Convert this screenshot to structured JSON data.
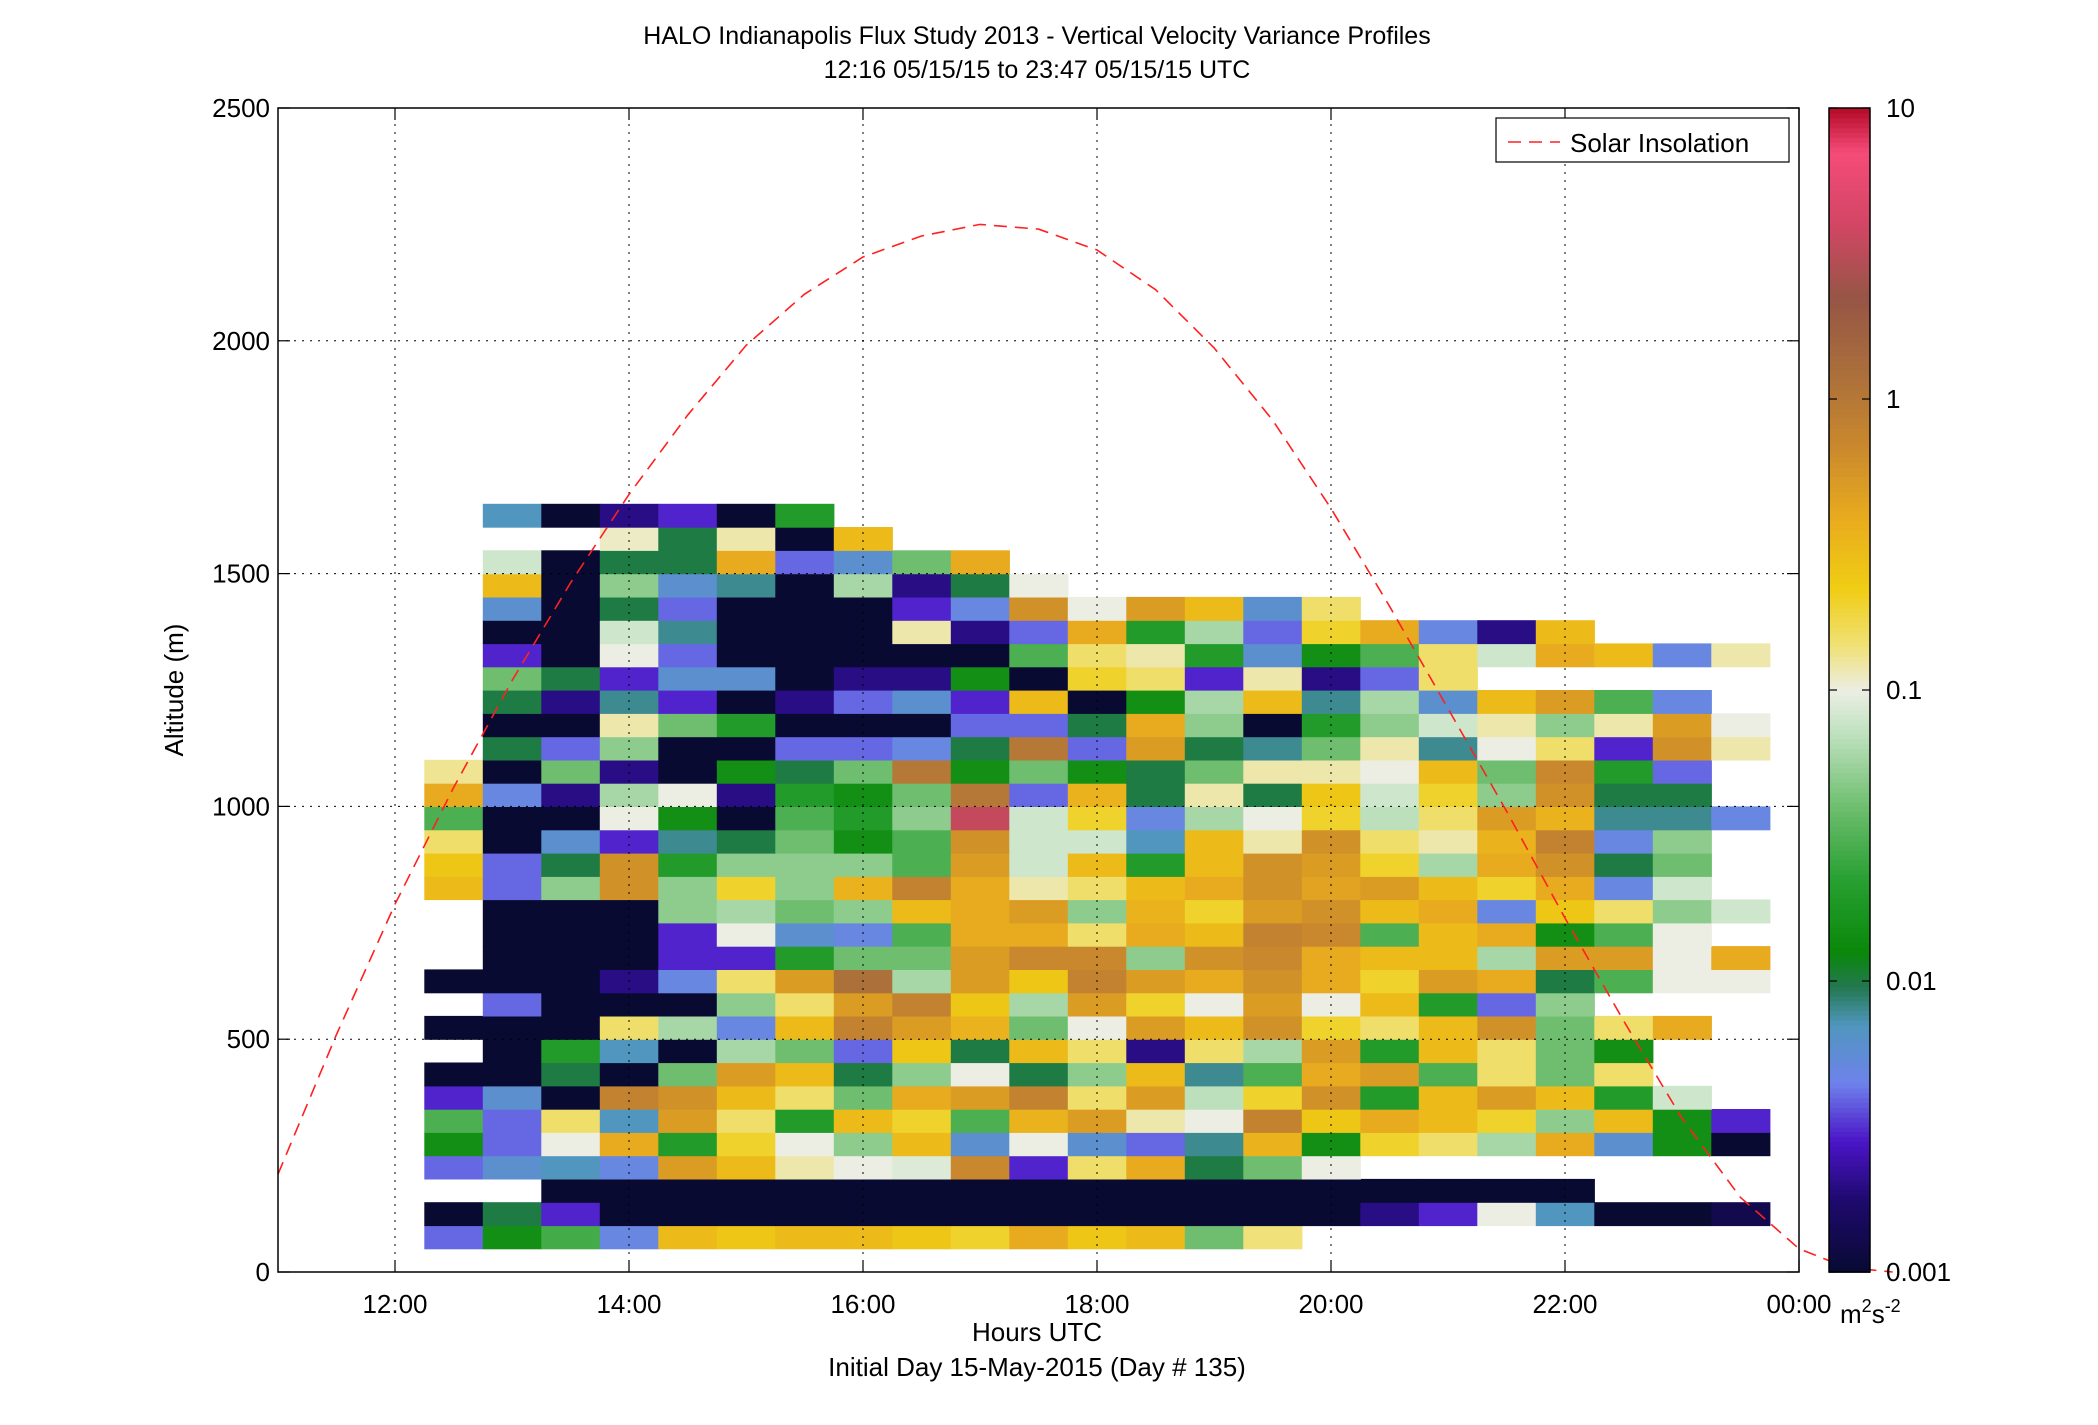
{
  "chart_data": {
    "type": "heatmap",
    "title": "HALO Indianapolis Flux Study 2013 - Vertical Velocity Variance Profiles",
    "subtitle": "12:16 05/15/15 to 23:47 05/15/15  UTC",
    "xlabel": "Hours UTC",
    "xlabel2": "Initial Day 15-May-2015 (Day # 135)",
    "ylabel": "Altitude (m)",
    "xlim": [
      11.0,
      24.0
    ],
    "ylim": [
      0,
      2500
    ],
    "x_ticks": [
      12,
      14,
      16,
      18,
      20,
      22,
      24
    ],
    "x_tick_labels": [
      "12:00",
      "14:00",
      "16:00",
      "18:00",
      "20:00",
      "22:00",
      "00:00"
    ],
    "y_ticks": [
      0,
      500,
      1000,
      1500,
      2000,
      2500
    ],
    "y_tick_labels": [
      "0",
      "500",
      "1000",
      "1500",
      "2000",
      "2500"
    ],
    "grid": true,
    "legend": {
      "position": "top-right",
      "entries": [
        "Solar Insolation"
      ]
    },
    "colorbar": {
      "scale": "log",
      "range": [
        0.001,
        10
      ],
      "tick_values": [
        0.001,
        0.01,
        0.1,
        1,
        10
      ],
      "tick_labels": [
        "0.001",
        "0.01",
        "0.1",
        "1",
        "10"
      ],
      "unit_base": "m",
      "unit_exp1": "2",
      "unit_mid": "s",
      "unit_exp2": "-2"
    },
    "bin": {
      "x_start": 12.25,
      "dx": 0.5,
      "y_start": 50,
      "dy": 50
    },
    "x_centers": [
      12.5,
      13.0,
      13.5,
      14.0,
      14.5,
      15.0,
      15.5,
      16.0,
      16.5,
      17.0,
      17.5,
      18.0,
      18.5,
      19.0,
      19.5,
      20.0,
      20.5,
      21.0,
      21.5,
      22.0,
      22.5,
      23.0,
      23.5
    ],
    "y_centers": [
      75,
      125,
      175,
      225,
      275,
      325,
      375,
      425,
      475,
      525,
      575,
      625,
      675,
      725,
      775,
      825,
      875,
      925,
      975,
      1025,
      1075,
      1125,
      1175,
      1225,
      1275,
      1325,
      1375,
      1425,
      1475,
      1525,
      1575,
      1625
    ],
    "values": [
      [
        0.004,
        0.015,
        0.028,
        0.005,
        0.3,
        0.25,
        0.3,
        0.3,
        0.25,
        0.2,
        0.4,
        0.25,
        0.3,
        0.04,
        0.14
      ],
      [
        0.001,
        0.01,
        0.003,
        0.001,
        0.001,
        0.001,
        0.001,
        0.001,
        0.001,
        0.001,
        0.001,
        0.001,
        0.001,
        0.001,
        0.001,
        0.001,
        0.002,
        0.003,
        0.1,
        0.007,
        0.001,
        0.001,
        0.0013,
        0.001,
        0.005,
        0.001
      ],
      [
        0.001,
        0.001,
        0.001,
        0.001,
        0.001,
        0.001,
        0.001,
        0.001,
        0.001,
        0.001,
        0.001,
        0.001,
        0.001,
        0.001,
        0.001,
        0.001,
        0.001,
        0.001
      ],
      [
        0.004,
        0.006,
        0.007,
        0.005,
        0.5,
        0.3,
        0.12,
        0.1,
        0.09,
        0.7,
        0.003,
        0.15,
        0.4,
        0.01,
        0.04,
        0.1
      ],
      [
        0.015,
        0.004,
        0.1,
        0.4,
        0.02,
        0.2,
        0.1,
        0.05,
        0.3,
        0.006,
        0.1,
        0.006,
        0.004,
        0.008,
        0.35,
        0.015,
        0.2,
        0.15,
        0.06,
        0.4,
        0.006,
        0.015,
        0.001
      ],
      [
        0.03,
        0.004,
        0.15,
        0.007,
        0.5,
        0.15,
        0.02,
        0.3,
        0.2,
        0.03,
        0.35,
        0.5,
        0.12,
        0.1,
        0.8,
        0.25,
        0.4,
        0.3,
        0.2,
        0.05,
        0.3,
        0.015,
        0.003,
        0.12
      ],
      [
        0.003,
        0.006,
        0.001,
        0.8,
        0.6,
        0.3,
        0.15,
        0.04,
        0.4,
        0.5,
        0.8,
        0.15,
        0.5,
        0.07,
        0.2,
        0.6,
        0.02,
        0.3,
        0.5,
        0.3,
        0.02,
        0.08
      ],
      [
        0.001,
        0.001,
        0.01,
        0.001,
        0.04,
        0.5,
        0.3,
        0.01,
        0.05,
        0.1,
        0.01,
        0.05,
        0.3,
        0.008,
        0.03,
        0.4,
        0.5,
        0.03,
        0.15,
        0.04,
        0.15
      ],
      [
        0.001,
        0.02,
        0.007,
        0.001,
        0.06,
        0.04,
        0.004,
        0.25,
        0.01,
        0.3,
        0.15,
        0.002,
        0.15,
        0.06,
        0.5,
        0.02,
        0.3,
        0.15,
        0.04,
        0.015
      ],
      [
        0.001,
        0.001,
        0.001,
        0.15,
        0.06,
        0.005,
        0.3,
        0.8,
        0.5,
        0.35,
        0.04,
        0.1,
        0.5,
        0.3,
        0.6,
        0.2,
        0.15,
        0.3,
        0.6,
        0.04,
        0.15,
        0.4
      ],
      [
        0.004,
        0.001,
        0.001,
        0.001,
        0.05,
        0.15,
        0.5,
        0.8,
        0.25,
        0.06,
        0.5,
        0.2,
        0.1,
        0.5,
        0.1,
        0.3,
        0.02,
        0.004,
        0.05
      ],
      [
        0.001,
        0.001,
        0.001,
        0.002,
        0.005,
        0.15,
        0.5,
        1.2,
        0.06,
        0.5,
        0.25,
        0.8,
        0.5,
        0.4,
        0.6,
        0.4,
        0.2,
        0.5,
        0.4,
        0.01,
        0.03,
        0.1,
        0.1,
        0.3
      ],
      [
        0.001,
        0.001,
        0.001,
        0.003,
        0.003,
        0.02,
        0.04,
        0.04,
        0.5,
        0.7,
        0.7,
        0.05,
        0.6,
        0.7,
        0.4,
        0.3,
        0.3,
        0.06,
        0.5,
        0.5,
        0.1,
        0.4
      ],
      [
        0.001,
        0.001,
        0.001,
        0.003,
        0.1,
        0.006,
        0.005,
        0.03,
        0.4,
        0.4,
        0.15,
        0.4,
        0.3,
        0.8,
        0.7,
        0.03,
        0.3,
        0.4,
        0.015,
        0.03,
        0.1
      ],
      [
        0.001,
        0.001,
        0.001,
        0.05,
        0.06,
        0.04,
        0.05,
        0.3,
        0.4,
        0.5,
        0.05,
        0.35,
        0.2,
        0.5,
        0.6,
        0.3,
        0.4,
        0.005,
        0.25,
        0.15,
        0.05,
        0.08
      ],
      [
        0.3,
        0.004,
        0.05,
        0.6,
        0.05,
        0.2,
        0.05,
        0.35,
        0.8,
        0.4,
        0.12,
        0.15,
        0.3,
        0.4,
        0.6,
        0.45,
        0.5,
        0.3,
        0.2,
        0.4,
        0.005,
        0.08
      ],
      [
        0.25,
        0.004,
        0.01,
        0.6,
        0.02,
        0.05,
        0.05,
        0.05,
        0.03,
        0.5,
        0.08,
        0.3,
        0.02,
        0.3,
        0.6,
        0.5,
        0.2,
        0.06,
        0.4,
        0.6,
        0.01,
        0.04
      ],
      [
        0.15,
        0.001,
        0.006,
        0.003,
        0.008,
        0.01,
        0.04,
        0.015,
        0.03,
        0.6,
        0.08,
        0.08,
        0.007,
        0.3,
        0.12,
        0.6,
        0.15,
        0.12,
        0.35,
        0.8,
        0.005,
        0.05
      ],
      [
        0.03,
        0.001,
        0.001,
        0.1,
        0.015,
        0.001,
        0.03,
        0.02,
        0.05,
        3.5,
        0.08,
        0.2,
        0.005,
        0.06,
        0.1,
        0.2,
        0.07,
        0.15,
        0.5,
        0.35,
        0.008,
        0.008,
        0.005
      ],
      [
        0.4,
        0.005,
        0.002,
        0.06,
        0.1,
        0.002,
        0.02,
        0.015,
        0.04,
        1.0,
        0.004,
        0.35,
        0.01,
        0.12,
        0.01,
        0.25,
        0.08,
        0.2,
        0.05,
        0.6,
        0.01,
        0.01
      ],
      [
        0.13,
        0.001,
        0.04,
        0.002,
        0.001,
        0.015,
        0.01,
        0.04,
        1.0,
        0.015,
        0.04,
        0.015,
        0.01,
        0.04,
        0.12,
        0.12,
        0.1,
        0.3,
        0.04,
        0.7,
        0.02,
        0.004
      ],
      [
        0.01,
        0.004,
        0.05,
        0.001,
        0.001,
        0.004,
        0.004,
        0.005,
        0.01,
        1.0,
        0.004,
        0.5,
        0.01,
        0.008,
        0.04,
        0.12,
        0.008,
        0.1,
        0.15,
        0.003,
        0.6,
        0.12,
        0.01
      ],
      [
        0.001,
        0.001,
        0.12,
        0.04,
        0.02,
        0.001,
        0.001,
        0.001,
        0.004,
        0.004,
        0.01,
        0.4,
        0.05,
        0.001,
        0.02,
        0.05,
        0.08,
        0.12,
        0.05,
        0.12,
        0.5,
        0.1,
        0.01
      ],
      [
        0.01,
        0.002,
        0.008,
        0.003,
        0.001,
        0.002,
        0.004,
        0.006,
        0.003,
        0.3,
        0.001,
        0.015,
        0.06,
        0.3,
        0.008,
        0.06,
        0.006,
        0.3,
        0.5,
        0.03,
        0.005
      ],
      [
        0.04,
        0.01,
        0.003,
        0.006,
        0.006,
        0.001,
        0.002,
        0.002,
        0.015,
        0.001,
        0.2,
        0.15,
        0.003,
        0.12,
        0.002,
        0.004,
        0.15
      ],
      [
        0.003,
        0.001,
        0.1,
        0.004,
        0.001,
        0.001,
        0.001,
        0.001,
        0.001,
        0.03,
        0.15,
        0.12,
        0.02,
        0.006,
        0.015,
        0.03,
        0.15,
        0.08,
        0.4,
        0.3,
        0.005,
        0.12,
        0.004,
        0.15
      ],
      [
        0.001,
        0.001,
        0.08,
        0.008,
        0.001,
        0.001,
        0.001,
        0.12,
        0.002,
        0.004,
        0.4,
        0.02,
        0.06,
        0.004,
        0.2,
        0.4,
        0.005,
        0.002,
        0.3
      ],
      [
        0.006,
        0.001,
        0.01,
        0.004,
        0.001,
        0.001,
        0.001,
        0.003,
        0.005,
        0.6,
        0.1,
        0.5,
        0.3,
        0.006,
        0.15
      ],
      [
        0.3,
        0.001,
        0.05,
        0.006,
        0.008,
        0.001,
        0.06,
        0.002,
        0.01,
        0.1
      ],
      [
        0.08,
        0.001,
        0.01,
        0.01,
        0.4,
        0.004,
        0.006,
        0.04,
        0.4
      ],
      [
        0.11,
        0.01,
        0.12,
        0.001,
        0.3
      ],
      [
        0.007,
        0.001,
        0.002,
        0.003,
        0.001,
        0.02
      ]
    ],
    "solar_insolation": {
      "name": "Solar Insolation",
      "x": [
        11.0,
        11.5,
        12.0,
        12.5,
        13.0,
        13.5,
        14.0,
        14.5,
        15.0,
        15.5,
        16.0,
        16.5,
        17.0,
        17.5,
        18.0,
        18.5,
        19.0,
        19.5,
        20.0,
        20.5,
        21.0,
        21.5,
        22.0,
        22.5,
        23.0,
        23.5,
        24.0,
        24.4,
        24.8
      ],
      "y": [
        210,
        510,
        790,
        1040,
        1270,
        1480,
        1670,
        1840,
        1990,
        2100,
        2180,
        2225,
        2250,
        2240,
        2195,
        2110,
        1985,
        1830,
        1640,
        1430,
        1210,
        990,
        760,
        540,
        330,
        160,
        50,
        10,
        0
      ]
    },
    "cell_rows_map": [
      [
        75,
        [
          12.5,
          12.5
        ],
        [
          13.0,
          23.5
        ],
        [
          14.5,
          15.5
        ],
        [
          16.0,
          17.5
        ]
      ],
      [
        125
      ],
      [
        175
      ],
      [
        225
      ],
      [
        275
      ],
      [
        325
      ],
      [
        375
      ],
      [
        425
      ],
      [
        475
      ],
      [
        525
      ],
      [
        575
      ],
      [
        625
      ],
      [
        675
      ],
      [
        725
      ],
      [
        775
      ],
      [
        825
      ],
      [
        875
      ],
      [
        925
      ],
      [
        975
      ],
      [
        1025
      ],
      [
        1075
      ],
      [
        1125
      ],
      [
        1175
      ],
      [
        1225
      ],
      [
        1275
      ],
      [
        1325
      ],
      [
        1375
      ],
      [
        1425
      ],
      [
        1475
      ],
      [
        1525
      ],
      [
        1575
      ],
      [
        1625
      ]
    ]
  }
}
